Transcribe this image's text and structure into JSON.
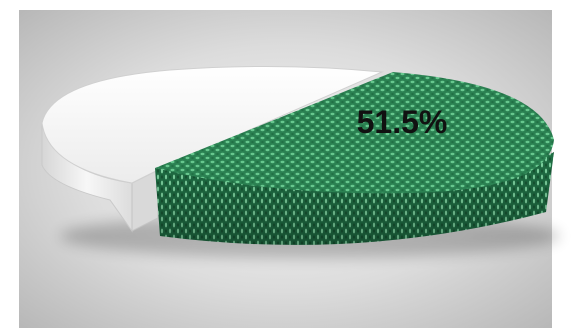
{
  "chart_data": {
    "type": "pie",
    "style": "3d",
    "slices": [
      {
        "value": 51.5,
        "label": "51.5%",
        "color": "#2e8a57",
        "pattern": "woven",
        "exploded": true
      },
      {
        "value": 48.5,
        "label": "",
        "color": "#f2f2f2",
        "pattern": "none",
        "exploded": true
      }
    ],
    "title": "",
    "legend": "none"
  },
  "colors": {
    "plot_background_center": "#f4f4f4",
    "plot_background_edge": "#bdbdbd",
    "green_accent": "#2e8a57",
    "light_slice": "#f2f2f2"
  }
}
